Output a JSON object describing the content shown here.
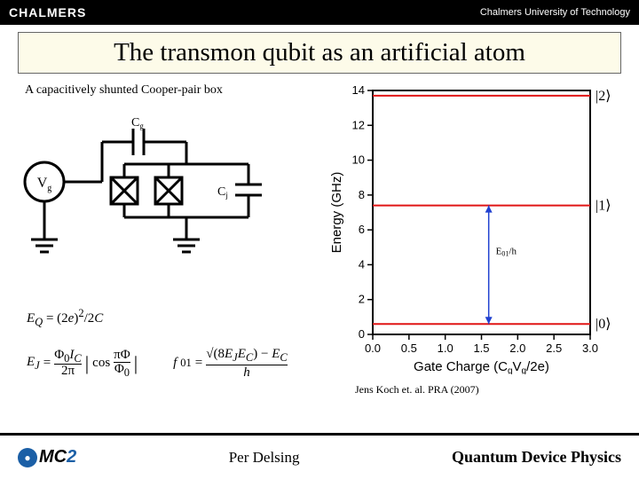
{
  "header": {
    "logo": "CHALMERS",
    "university": "Chalmers University of Technology"
  },
  "title": "The transmon qubit as an artificial atom",
  "caption": "A capacitively shunted Cooper-pair box",
  "circuit": {
    "labels": {
      "vg": "V",
      "vg_sub": "g",
      "cg": "C",
      "cg_sub": "g",
      "cj": "C",
      "cj_sub": "j"
    }
  },
  "equations": {
    "eq1": "E_Q = (2e)² / 2C",
    "eq2_lhs": "E_J =",
    "eq2_frac_top": "Φ₀I_C",
    "eq2_frac_bot": "2π",
    "eq2_cos_top": "πΦ",
    "eq2_cos_bot": "Φ₀",
    "f01_lhs": "f₀₁ =",
    "f01_top": "√(8E_J E_C) − E_C",
    "f01_bot": "h"
  },
  "chart": {
    "type": "line",
    "xlabel": "Gate Charge (C_gV_g/2e)",
    "ylabel": "Energy (GHz)",
    "xlim": [
      0.0,
      3.0
    ],
    "ylim": [
      0,
      14
    ],
    "xticks": [
      0.0,
      0.5,
      1.0,
      1.5,
      2.0,
      2.5,
      3.0
    ],
    "yticks": [
      0,
      2,
      4,
      6,
      8,
      10,
      12,
      14
    ],
    "title_fontsize": 15,
    "tick_fontsize": 13,
    "background_color": "#ffffff",
    "axis_color": "#000000",
    "line_color": "#e01515",
    "line_width": 2,
    "levels": [
      {
        "y": 0.6,
        "ket": "|0⟩"
      },
      {
        "y": 7.4,
        "ket": "|1⟩"
      },
      {
        "y": 13.7,
        "ket": "|2⟩"
      }
    ],
    "arrow_label": "E₀₁/h",
    "arrow_color": "#2040d0"
  },
  "citation": "Jens Koch et. al. PRA (2007)",
  "footer": {
    "mc2": "MC",
    "mc2_suffix": "2",
    "author": "Per Delsing",
    "group": "Quantum Device Physics"
  }
}
